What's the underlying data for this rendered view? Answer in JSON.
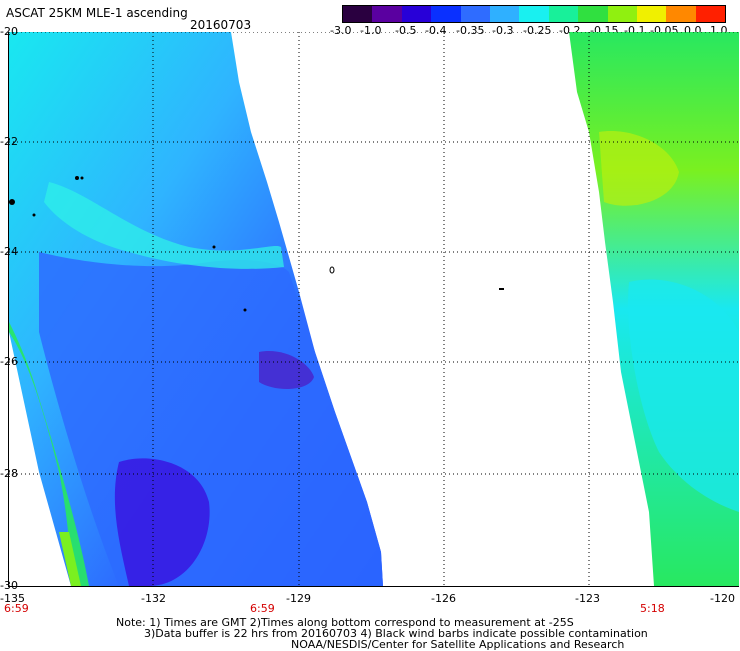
{
  "header": {
    "title": "ASCAT 25KM MLE-1 ascending",
    "date": "20160703"
  },
  "colorbar": {
    "labels": [
      "-3.0",
      "-1.0",
      "-0.5",
      "-0.4",
      "-0.35",
      "-0.3",
      "-0.25",
      "-0.2",
      "-0.15",
      "-0.1",
      "-0.05",
      "0.0",
      "1.0"
    ],
    "colors": [
      "#2a0040",
      "#5a00a0",
      "#2800d8",
      "#0a30ff",
      "#2f6cff",
      "#2fb0ff",
      "#19f0f0",
      "#18f09a",
      "#30e040",
      "#90f010",
      "#f0f000",
      "#ff8800",
      "#ff2000"
    ]
  },
  "map": {
    "lat_labels": [
      "-20",
      "-22",
      "-24",
      "-26",
      "-28",
      "-30"
    ],
    "lon_labels": [
      "-135",
      "-132",
      "-129",
      "-126",
      "-123",
      "-120"
    ],
    "time_labels": [
      "6:59",
      "6:59",
      "5:18"
    ],
    "colors": {
      "background": "#ffffff",
      "cyan": "#19e8f0",
      "light_cyan": "#2ff0e8",
      "sky": "#2fb4ff",
      "blue": "#2d6bff",
      "deep_blue": "#1f3cff",
      "indigo": "#3a10e0",
      "purple": "#5a00b0",
      "green": "#28e860",
      "lime": "#7af020",
      "yellow_green": "#b8f010"
    }
  },
  "notes": {
    "line1": "Note: 1) Times are GMT 2)Times along bottom correspond to measurement at -25S",
    "line2": "3)Data buffer is 22 hrs from 20160703 4) Black wind barbs indicate possible contamination",
    "line3": "NOAA/NESDIS/Center for Satellite Applications and Research"
  }
}
